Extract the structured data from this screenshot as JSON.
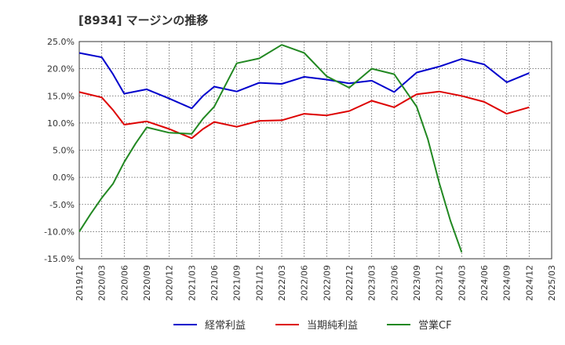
{
  "chart_data": {
    "type": "line",
    "title": "[8934]  マージンの推移",
    "xlabel": "",
    "ylabel": "",
    "ylim": [
      -15,
      25
    ],
    "y_ticks": [
      25,
      20,
      15,
      10,
      5,
      0,
      -5,
      -10,
      -15
    ],
    "y_tick_labels": [
      "25.0%",
      "20.0%",
      "15.0%",
      "10.0%",
      "5.0%",
      "0.0%",
      "-5.0%",
      "-10.0%",
      "-15.0%"
    ],
    "x_tick_labels": [
      "2019/12",
      "2020/03",
      "2020/06",
      "2020/09",
      "2020/12",
      "2021/03",
      "2021/06",
      "2021/09",
      "2021/12",
      "2022/03",
      "2022/06",
      "2022/09",
      "2022/12",
      "2023/03",
      "2023/06",
      "2023/09",
      "2023/12",
      "2024/03",
      "2024/06",
      "2024/09",
      "2024/12",
      "2025/03"
    ],
    "grid": true,
    "legend_position": "bottom",
    "series": [
      {
        "name": "経常利益",
        "color": "#0000cc",
        "points": [
          [
            0,
            22.9
          ],
          [
            1,
            22.1
          ],
          [
            1.5,
            19.0
          ],
          [
            2,
            15.4
          ],
          [
            3,
            16.2
          ],
          [
            4,
            14.5
          ],
          [
            5,
            12.7
          ],
          [
            5.5,
            15.0
          ],
          [
            6,
            16.7
          ],
          [
            7,
            15.8
          ],
          [
            8,
            17.4
          ],
          [
            9,
            17.2
          ],
          [
            10,
            18.5
          ],
          [
            11,
            18.0
          ],
          [
            12,
            17.3
          ],
          [
            13,
            17.8
          ],
          [
            14,
            15.7
          ],
          [
            15,
            19.3
          ],
          [
            16,
            20.4
          ],
          [
            17,
            21.8
          ],
          [
            18,
            20.8
          ],
          [
            19,
            17.5
          ],
          [
            20,
            19.2
          ]
        ]
      },
      {
        "name": "当期純利益",
        "color": "#dd0000",
        "points": [
          [
            0,
            15.7
          ],
          [
            1,
            14.7
          ],
          [
            1.5,
            12.4
          ],
          [
            2,
            9.7
          ],
          [
            3,
            10.3
          ],
          [
            4,
            8.9
          ],
          [
            5,
            7.2
          ],
          [
            5.5,
            8.9
          ],
          [
            6,
            10.2
          ],
          [
            7,
            9.3
          ],
          [
            8,
            10.4
          ],
          [
            9,
            10.5
          ],
          [
            10,
            11.7
          ],
          [
            11,
            11.4
          ],
          [
            12,
            12.2
          ],
          [
            13,
            14.1
          ],
          [
            14,
            12.9
          ],
          [
            15,
            15.3
          ],
          [
            16,
            15.8
          ],
          [
            17,
            15.0
          ],
          [
            18,
            13.9
          ],
          [
            19,
            11.7
          ],
          [
            20,
            12.9
          ]
        ]
      },
      {
        "name": "営業CF",
        "color": "#228822",
        "points": [
          [
            0,
            -10.0
          ],
          [
            0.5,
            -6.8
          ],
          [
            1,
            -3.8
          ],
          [
            1.5,
            -1.2
          ],
          [
            2,
            2.8
          ],
          [
            2.5,
            6.2
          ],
          [
            3,
            9.2
          ],
          [
            4,
            8.2
          ],
          [
            5,
            8.0
          ],
          [
            5.5,
            10.8
          ],
          [
            6,
            13.0
          ],
          [
            7,
            21.0
          ],
          [
            8,
            21.9
          ],
          [
            9,
            24.4
          ],
          [
            10,
            22.9
          ],
          [
            11,
            18.6
          ],
          [
            12,
            16.5
          ],
          [
            13,
            20.0
          ],
          [
            14,
            19.0
          ],
          [
            15,
            13.0
          ],
          [
            15.5,
            7.0
          ],
          [
            16,
            -1.0
          ],
          [
            16.5,
            -8.0
          ],
          [
            17,
            -13.8
          ]
        ]
      }
    ]
  }
}
